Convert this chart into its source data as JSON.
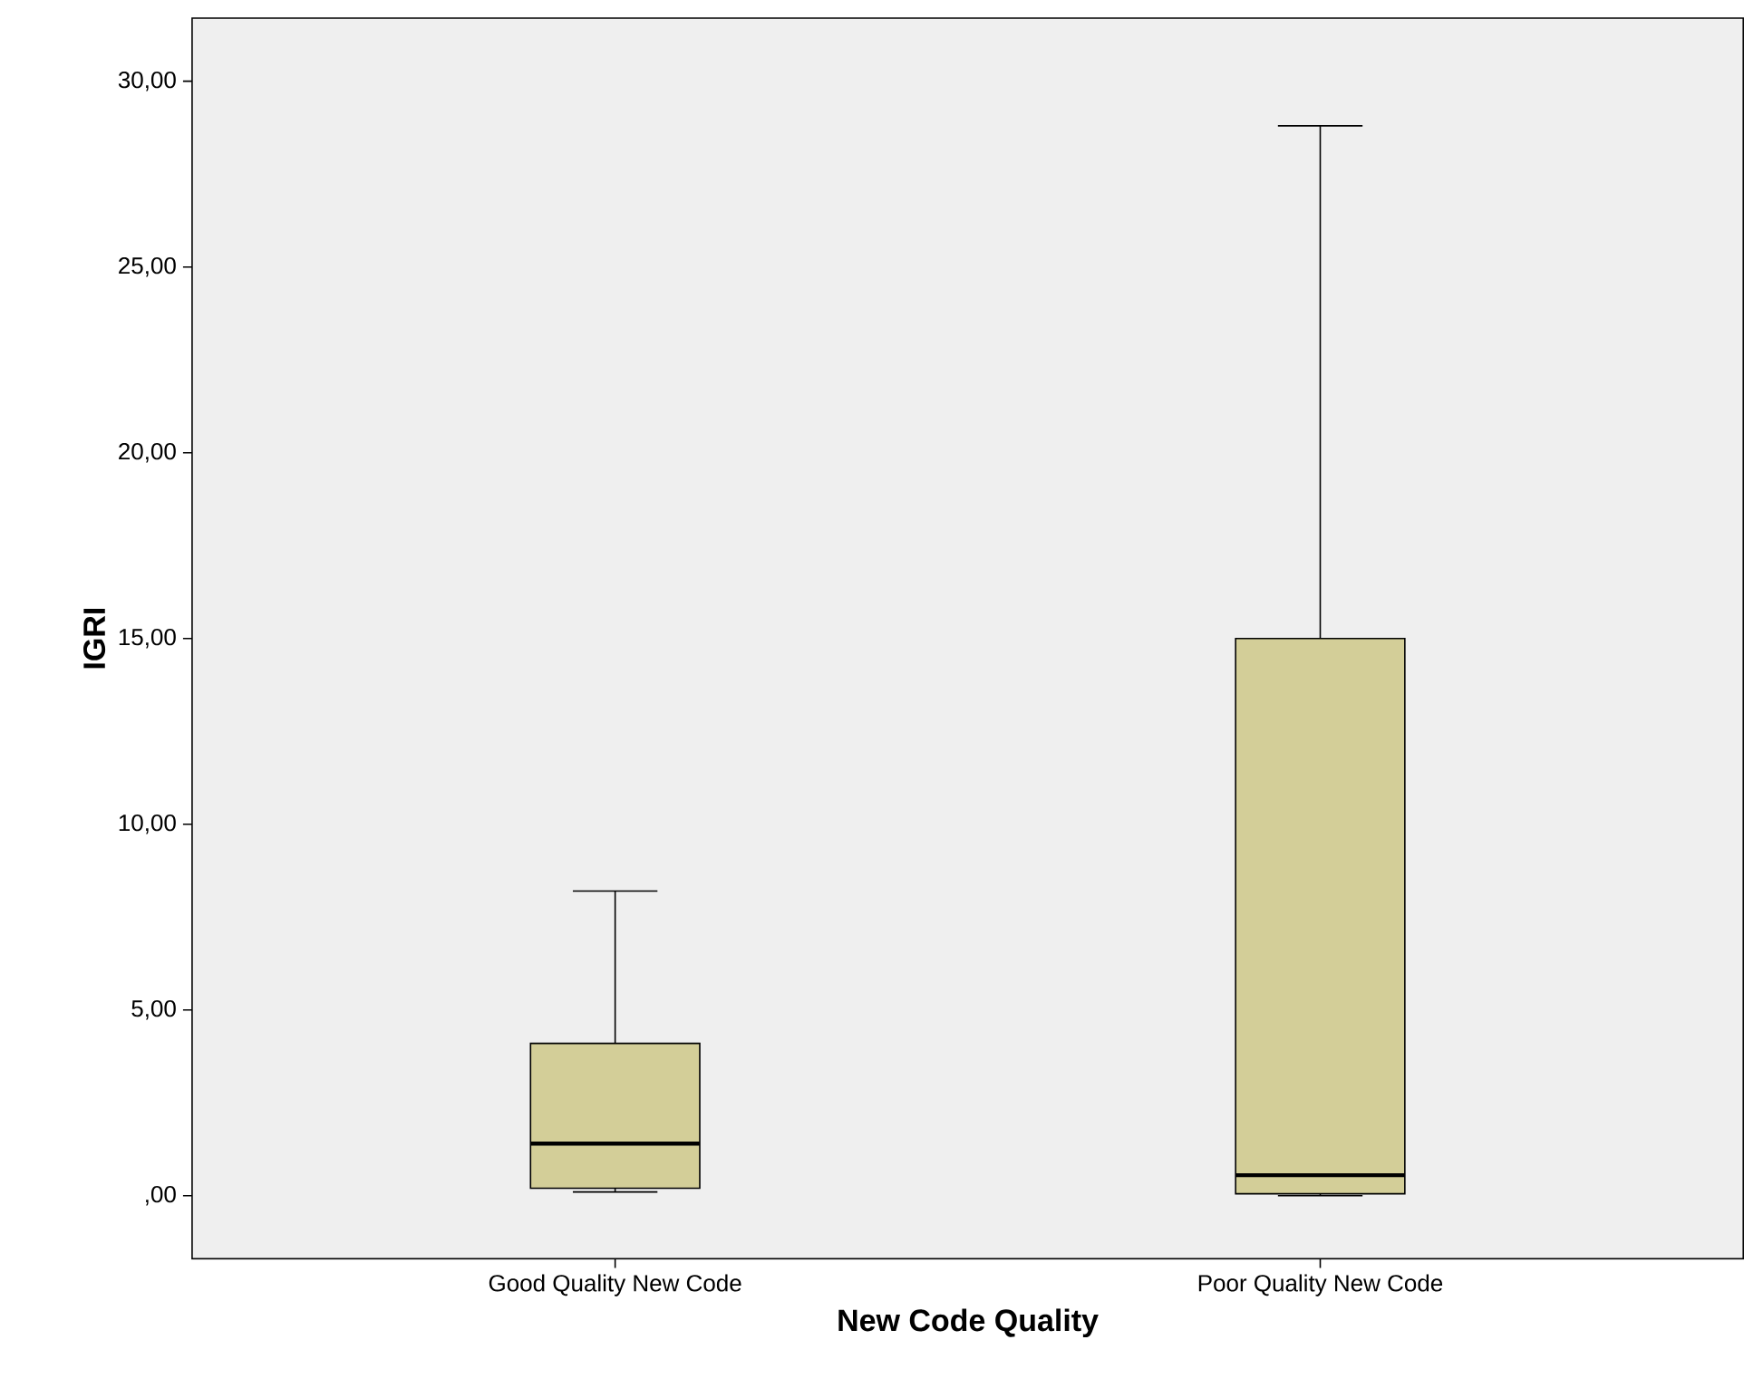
{
  "chart_data": {
    "type": "box",
    "xlabel": "New Code Quality",
    "ylabel": "IGRI",
    "categories": [
      "Good Quality New Code",
      "Poor Quality New Code"
    ],
    "color": "#d3ce98",
    "boxes": [
      {
        "low": 0.1,
        "q1": 0.2,
        "median": 1.4,
        "q3": 4.1,
        "high": 8.2
      },
      {
        "low": 0,
        "q1": 0.05,
        "median": 0.55,
        "q3": 15,
        "high": 28.8
      }
    ],
    "ylim": [
      -1.7,
      31.7
    ],
    "yticks": [
      {
        "value": 0,
        "label": ",00"
      },
      {
        "value": 5,
        "label": "5,00"
      },
      {
        "value": 10,
        "label": "10,00"
      },
      {
        "value": 15,
        "label": "15,00"
      },
      {
        "value": 20,
        "label": "20,00"
      },
      {
        "value": 25,
        "label": "25,00"
      },
      {
        "value": 30,
        "label": "30,00"
      }
    ]
  }
}
